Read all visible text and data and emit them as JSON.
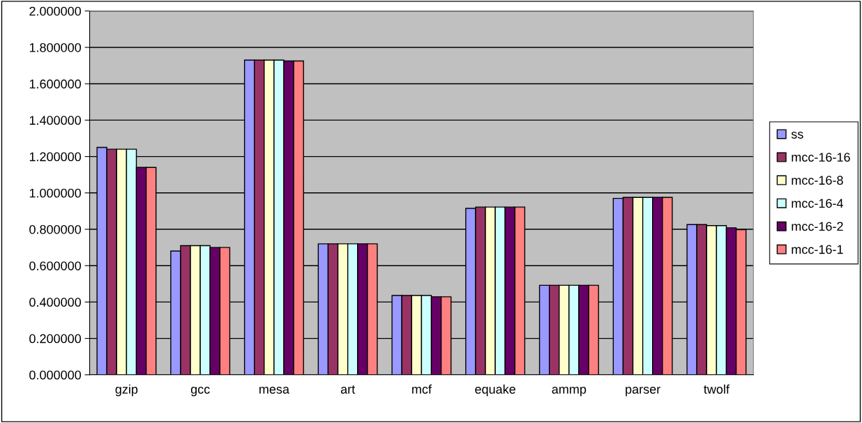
{
  "chart_data": {
    "type": "bar",
    "categories": [
      "gzip",
      "gcc",
      "mesa",
      "art",
      "mcf",
      "equake",
      "ammp",
      "parser",
      "twolf"
    ],
    "series": [
      {
        "name": "ss",
        "color": "#9999ff",
        "values": [
          1.25,
          0.68,
          1.73,
          0.72,
          0.436,
          0.915,
          0.492,
          0.97,
          0.826
        ]
      },
      {
        "name": "mcc-16-16",
        "color": "#993366",
        "values": [
          1.24,
          0.71,
          1.73,
          0.72,
          0.436,
          0.922,
          0.492,
          0.975,
          0.826
        ]
      },
      {
        "name": "mcc-16-8",
        "color": "#ffffcc",
        "values": [
          1.24,
          0.71,
          1.73,
          0.72,
          0.436,
          0.922,
          0.492,
          0.975,
          0.82
        ]
      },
      {
        "name": "mcc-16-4",
        "color": "#ccffff",
        "values": [
          1.24,
          0.71,
          1.73,
          0.72,
          0.436,
          0.922,
          0.492,
          0.975,
          0.82
        ]
      },
      {
        "name": "mcc-16-2",
        "color": "#660066",
        "values": [
          1.14,
          0.7,
          1.725,
          0.72,
          0.429,
          0.922,
          0.492,
          0.975,
          0.808
        ]
      },
      {
        "name": "mcc-16-1",
        "color": "#ff8080",
        "values": [
          1.14,
          0.7,
          1.725,
          0.72,
          0.429,
          0.922,
          0.492,
          0.975,
          0.798
        ]
      }
    ],
    "ylim": [
      0,
      2
    ],
    "yticks": [
      {
        "value": 0,
        "label": "0.000000"
      },
      {
        "value": 0.2,
        "label": "0.200000"
      },
      {
        "value": 0.4,
        "label": "0.400000"
      },
      {
        "value": 0.6,
        "label": "0.600000"
      },
      {
        "value": 0.8,
        "label": "0.800000"
      },
      {
        "value": 1.0,
        "label": "1.000000"
      },
      {
        "value": 1.2,
        "label": "1.200000"
      },
      {
        "value": 1.4,
        "label": "1.400000"
      },
      {
        "value": 1.6,
        "label": "1.600000"
      },
      {
        "value": 1.8,
        "label": "1.800000"
      },
      {
        "value": 2.0,
        "label": "2.000000"
      }
    ],
    "grid": "y",
    "legend": "right"
  }
}
